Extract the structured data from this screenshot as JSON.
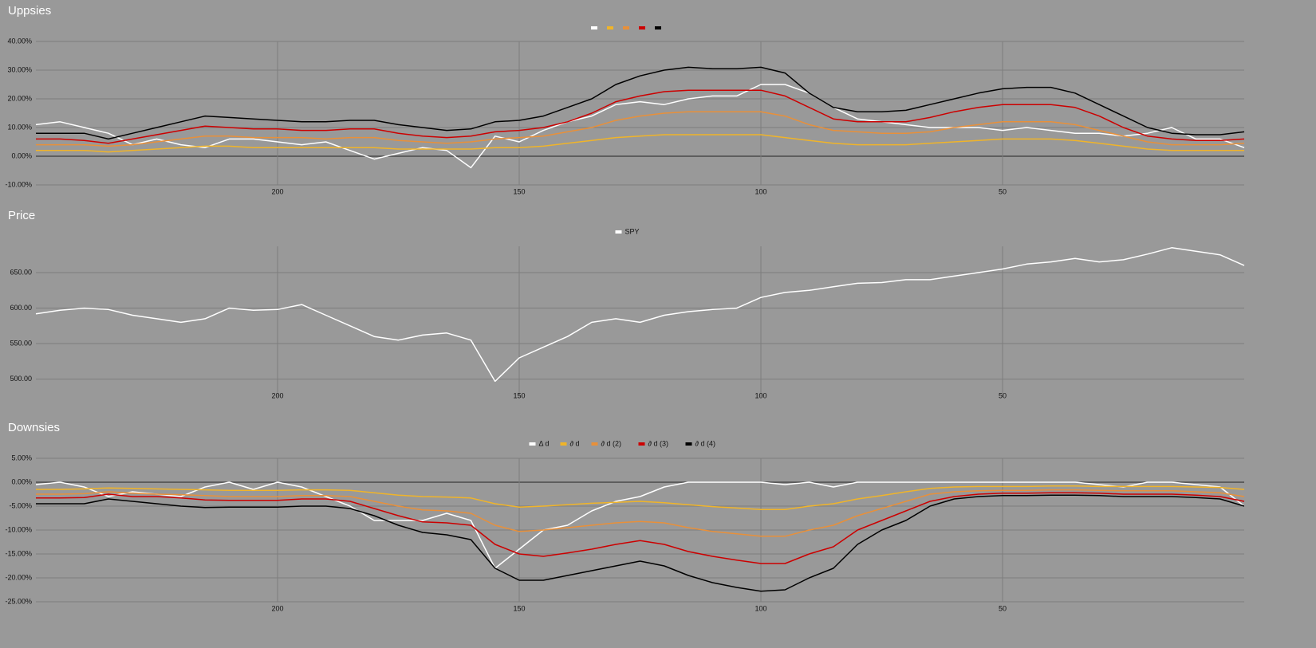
{
  "chart_data": [
    {
      "type": "line",
      "title": "Uppsies",
      "grid": true,
      "x": [
        250,
        245,
        240,
        235,
        230,
        225,
        220,
        215,
        210,
        205,
        200,
        195,
        190,
        185,
        180,
        175,
        170,
        165,
        160,
        155,
        150,
        145,
        140,
        135,
        130,
        125,
        120,
        115,
        110,
        105,
        100,
        95,
        90,
        85,
        80,
        75,
        70,
        65,
        60,
        55,
        50,
        45,
        40,
        35,
        30,
        25,
        20,
        15,
        10,
        5,
        0
      ],
      "xlim": [
        250,
        0
      ],
      "xticks": [
        200,
        150,
        100,
        50
      ],
      "ylim": [
        -10,
        40
      ],
      "yticks": [
        {
          "value": -10,
          "label": "-10.00%"
        },
        {
          "value": 0,
          "label": "0.00%"
        },
        {
          "value": 10,
          "label": "10.00%"
        },
        {
          "value": 20,
          "label": "20.00%"
        },
        {
          "value": 30,
          "label": "30.00%"
        },
        {
          "value": 40,
          "label": "40.00%"
        }
      ],
      "series": [
        {
          "color": "#ffffff",
          "values": [
            11,
            12,
            10,
            8,
            4,
            6,
            4,
            3,
            6,
            6,
            5,
            4,
            5,
            2,
            -1,
            1,
            3,
            2,
            -4,
            7,
            5,
            9,
            12,
            14,
            18,
            19,
            18,
            20,
            21,
            21,
            25,
            25,
            22,
            17,
            13,
            12,
            11,
            10,
            10,
            10,
            9,
            10,
            9,
            8,
            8,
            7,
            8,
            10,
            6,
            6,
            3
          ]
        },
        {
          "color": "#f0b429",
          "values": [
            2,
            2,
            2,
            1.5,
            2,
            2.5,
            3,
            3.5,
            3.5,
            3,
            3,
            3,
            3,
            3,
            3,
            2.5,
            2.5,
            2.5,
            2.5,
            3,
            3,
            3.5,
            4.5,
            5.5,
            6.5,
            7,
            7.5,
            7.5,
            7.5,
            7.5,
            7.5,
            6.5,
            5.5,
            4.5,
            4,
            4,
            4,
            4.5,
            5,
            5.5,
            6,
            6,
            6,
            5.5,
            4.5,
            3.5,
            2.5,
            2,
            2,
            2,
            2
          ]
        },
        {
          "color": "#e8903a",
          "values": [
            4,
            4,
            4,
            3.5,
            4,
            5,
            6,
            7,
            7,
            6.5,
            6.5,
            6.5,
            6,
            6.5,
            6.5,
            5.5,
            5,
            4.5,
            5,
            6,
            6.5,
            7,
            8.5,
            10,
            12.5,
            14,
            15,
            15.5,
            15.5,
            15.5,
            15.5,
            14,
            11,
            9,
            8.5,
            8,
            8,
            8.5,
            10,
            11,
            12,
            12,
            12,
            11,
            9,
            7,
            5,
            4,
            4,
            4,
            4.5
          ]
        },
        {
          "color": "#cc0000",
          "values": [
            6,
            6,
            5.5,
            4.5,
            6,
            7.5,
            9,
            10.5,
            10,
            9.5,
            9.5,
            9,
            9,
            9.5,
            9.5,
            8,
            7,
            6.5,
            7,
            8.5,
            9,
            10,
            12,
            15,
            19,
            21,
            22.5,
            23,
            23,
            23,
            23,
            21,
            17,
            13,
            12,
            12,
            12,
            13.5,
            15.5,
            17,
            18,
            18,
            18,
            17,
            14,
            10,
            7,
            6,
            5.5,
            5.5,
            6
          ]
        },
        {
          "color": "#000000",
          "values": [
            8,
            8,
            8,
            6,
            8,
            10,
            12,
            14,
            13.5,
            13,
            12.5,
            12,
            12,
            12.5,
            12.5,
            11,
            10,
            9,
            9.5,
            12,
            12.5,
            14,
            17,
            20,
            25,
            28,
            30,
            31,
            30.5,
            30.5,
            31,
            29,
            22,
            17,
            15.5,
            15.5,
            16,
            18,
            20,
            22,
            23.5,
            24,
            24,
            22,
            18,
            14,
            10,
            8,
            7.5,
            7.5,
            8.5
          ]
        }
      ]
    },
    {
      "type": "line",
      "title": "Price",
      "grid": true,
      "x": [
        250,
        245,
        240,
        235,
        230,
        225,
        220,
        215,
        210,
        205,
        200,
        195,
        190,
        185,
        180,
        175,
        170,
        165,
        160,
        155,
        150,
        145,
        140,
        135,
        130,
        125,
        120,
        115,
        110,
        105,
        100,
        95,
        90,
        85,
        80,
        75,
        70,
        65,
        60,
        55,
        50,
        45,
        40,
        35,
        30,
        25,
        20,
        15,
        10,
        5,
        0
      ],
      "xlim": [
        250,
        0
      ],
      "xticks": [
        200,
        150,
        100,
        50
      ],
      "ylim": [
        475,
        687
      ],
      "yticks": [
        {
          "value": 500,
          "label": "500.00"
        },
        {
          "value": 550,
          "label": "550.00"
        },
        {
          "value": 600,
          "label": "600.00"
        },
        {
          "value": 650,
          "label": "650.00"
        }
      ],
      "series": [
        {
          "name": "SPY",
          "color": "#ffffff",
          "values": [
            592,
            597,
            600,
            598,
            590,
            585,
            580,
            585,
            600,
            597,
            598,
            605,
            590,
            575,
            560,
            555,
            562,
            565,
            555,
            497,
            530,
            545,
            560,
            580,
            585,
            580,
            590,
            595,
            598,
            600,
            615,
            622,
            625,
            630,
            635,
            636,
            640,
            640,
            645,
            650,
            655,
            662,
            665,
            670,
            665,
            668,
            676,
            685,
            680,
            675,
            660
          ]
        }
      ]
    },
    {
      "type": "line",
      "title": "Downsies",
      "grid": true,
      "x": [
        250,
        245,
        240,
        235,
        230,
        225,
        220,
        215,
        210,
        205,
        200,
        195,
        190,
        185,
        180,
        175,
        170,
        165,
        160,
        155,
        150,
        145,
        140,
        135,
        130,
        125,
        120,
        115,
        110,
        105,
        100,
        95,
        90,
        85,
        80,
        75,
        70,
        65,
        60,
        55,
        50,
        45,
        40,
        35,
        30,
        25,
        20,
        15,
        10,
        5,
        0
      ],
      "xlim": [
        250,
        0
      ],
      "xticks": [
        200,
        150,
        100,
        50
      ],
      "ylim": [
        -25,
        5
      ],
      "yticks": [
        {
          "value": -25,
          "label": "-25.00%"
        },
        {
          "value": -20,
          "label": "-20.00%"
        },
        {
          "value": -15,
          "label": "-15.00%"
        },
        {
          "value": -10,
          "label": "-10.00%"
        },
        {
          "value": -5,
          "label": "-5.00%"
        },
        {
          "value": 0,
          "label": "0.00%"
        },
        {
          "value": 5,
          "label": "5.00%"
        }
      ],
      "series": [
        {
          "name": "Δ d",
          "color": "#ffffff",
          "values": [
            -0.5,
            0,
            -1,
            -3,
            -2,
            -2.5,
            -3,
            -1,
            0,
            -1.5,
            0,
            -1,
            -3,
            -5,
            -8,
            -8,
            -8,
            -6.5,
            -8,
            -18,
            -14,
            -10,
            -9,
            -6,
            -4,
            -3,
            -1,
            0,
            0,
            0,
            0,
            -0.5,
            0,
            -1,
            0,
            0,
            0,
            0,
            0,
            0,
            0,
            0,
            0,
            0,
            -0.5,
            -1,
            0,
            0,
            -0.5,
            -1,
            -5
          ]
        },
        {
          "name": "∂ d",
          "color": "#f0b429",
          "values": [
            -1.5,
            -1.5,
            -1.4,
            -1.2,
            -1.3,
            -1.4,
            -1.5,
            -1.6,
            -1.7,
            -1.7,
            -1.7,
            -1.6,
            -1.6,
            -1.7,
            -2.2,
            -2.7,
            -3,
            -3.1,
            -3.3,
            -4.5,
            -5.2,
            -5,
            -4.7,
            -4.4,
            -4.2,
            -4,
            -4.3,
            -4.7,
            -5.1,
            -5.4,
            -5.7,
            -5.7,
            -5,
            -4.5,
            -3.5,
            -2.8,
            -2,
            -1.3,
            -1,
            -0.9,
            -0.9,
            -0.9,
            -0.8,
            -0.8,
            -0.9,
            -0.9,
            -0.9,
            -0.9,
            -1,
            -1.1,
            -1.5
          ]
        },
        {
          "name": "∂ d (2)",
          "color": "#e8903a",
          "values": [
            -2.5,
            -2.5,
            -2.4,
            -2,
            -2.3,
            -2.5,
            -2.6,
            -2.8,
            -3,
            -3,
            -3,
            -2.8,
            -2.8,
            -3,
            -4,
            -5,
            -5.8,
            -6,
            -6.5,
            -9,
            -10.3,
            -10,
            -9.5,
            -9,
            -8.5,
            -8.2,
            -8.5,
            -9.5,
            -10.3,
            -10.8,
            -11.3,
            -11.3,
            -10,
            -9,
            -7,
            -5.5,
            -4,
            -2.5,
            -2,
            -1.8,
            -1.7,
            -1.7,
            -1.6,
            -1.6,
            -1.7,
            -1.8,
            -1.8,
            -1.8,
            -2,
            -2.2,
            -3
          ]
        },
        {
          "name": "∂ d (3)",
          "color": "#cc0000",
          "values": [
            -3.3,
            -3.3,
            -3.2,
            -2.5,
            -3,
            -3,
            -3.3,
            -3.7,
            -3.8,
            -3.8,
            -3.8,
            -3.5,
            -3.5,
            -4,
            -5.5,
            -7,
            -8.3,
            -8.5,
            -9,
            -13,
            -15,
            -15.5,
            -14.8,
            -14,
            -13,
            -12.2,
            -13,
            -14.5,
            -15.5,
            -16.3,
            -17,
            -17,
            -15,
            -13.5,
            -10,
            -8,
            -6,
            -4,
            -3,
            -2.5,
            -2.3,
            -2.3,
            -2.2,
            -2.2,
            -2.3,
            -2.5,
            -2.5,
            -2.5,
            -2.7,
            -3,
            -4
          ]
        },
        {
          "name": "∂ d (4)",
          "color": "#000000",
          "values": [
            -4.5,
            -4.5,
            -4.5,
            -3.5,
            -4,
            -4.5,
            -5,
            -5.3,
            -5.2,
            -5.2,
            -5.2,
            -5,
            -5,
            -5.5,
            -7,
            -9,
            -10.5,
            -11,
            -12,
            -18,
            -20.5,
            -20.5,
            -19.5,
            -18.5,
            -17.5,
            -16.5,
            -17.5,
            -19.5,
            -21,
            -22,
            -22.8,
            -22.5,
            -20,
            -18,
            -13,
            -10,
            -8,
            -5,
            -3.5,
            -3,
            -2.8,
            -2.8,
            -2.7,
            -2.7,
            -2.8,
            -3,
            -3,
            -3,
            -3.2,
            -3.5,
            -5
          ]
        }
      ]
    }
  ]
}
